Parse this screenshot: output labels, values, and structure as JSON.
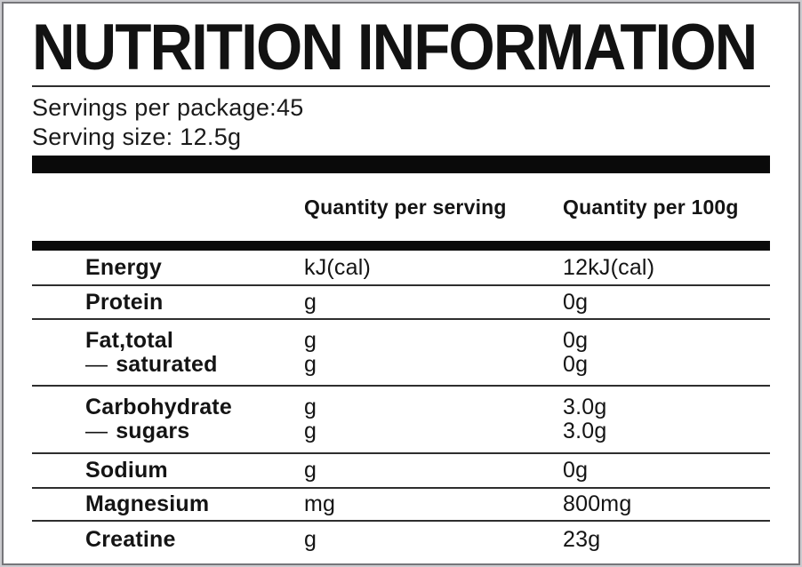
{
  "label": {
    "title": "NUTRITION INFORMATION",
    "servings_per_package": "Servings per package:45",
    "serving_size": "Serving size: 12.5g",
    "columns": {
      "quantity_per_serving": "Quantity per serving",
      "quantity_per_100g": "Quantity per 100g"
    },
    "rows": [
      {
        "lines": [
          {
            "label": "Energy",
            "per_serving": "kJ(cal)",
            "per_100g": "12kJ(cal)"
          }
        ]
      },
      {
        "lines": [
          {
            "label": "Protein",
            "per_serving": "g",
            "per_100g": "0g"
          }
        ]
      },
      {
        "lines": [
          {
            "label": "Fat,total",
            "per_serving": "g",
            "per_100g": "0g"
          },
          {
            "prefix": "—",
            "label": "saturated",
            "per_serving": "g",
            "per_100g": "0g"
          }
        ]
      },
      {
        "lines": [
          {
            "label": "Carbohydrate",
            "per_serving": "g",
            "per_100g": "3.0g"
          },
          {
            "prefix": "—",
            "label": "sugars",
            "per_serving": "g",
            "per_100g": "3.0g"
          }
        ]
      },
      {
        "lines": [
          {
            "label": "Sodium",
            "per_serving": "g",
            "per_100g": "0g"
          }
        ]
      },
      {
        "lines": [
          {
            "label": "Magnesium",
            "per_serving": "mg",
            "per_100g": "800mg"
          }
        ]
      },
      {
        "lines": [
          {
            "label": "Creatine",
            "per_serving": "g",
            "per_100g": "23g"
          }
        ]
      }
    ],
    "colors": {
      "text": "#141414",
      "bar": "#0a0a0a",
      "separator": "#2e2e2e",
      "frame_border": "#76767a",
      "background": "#ffffff"
    }
  }
}
